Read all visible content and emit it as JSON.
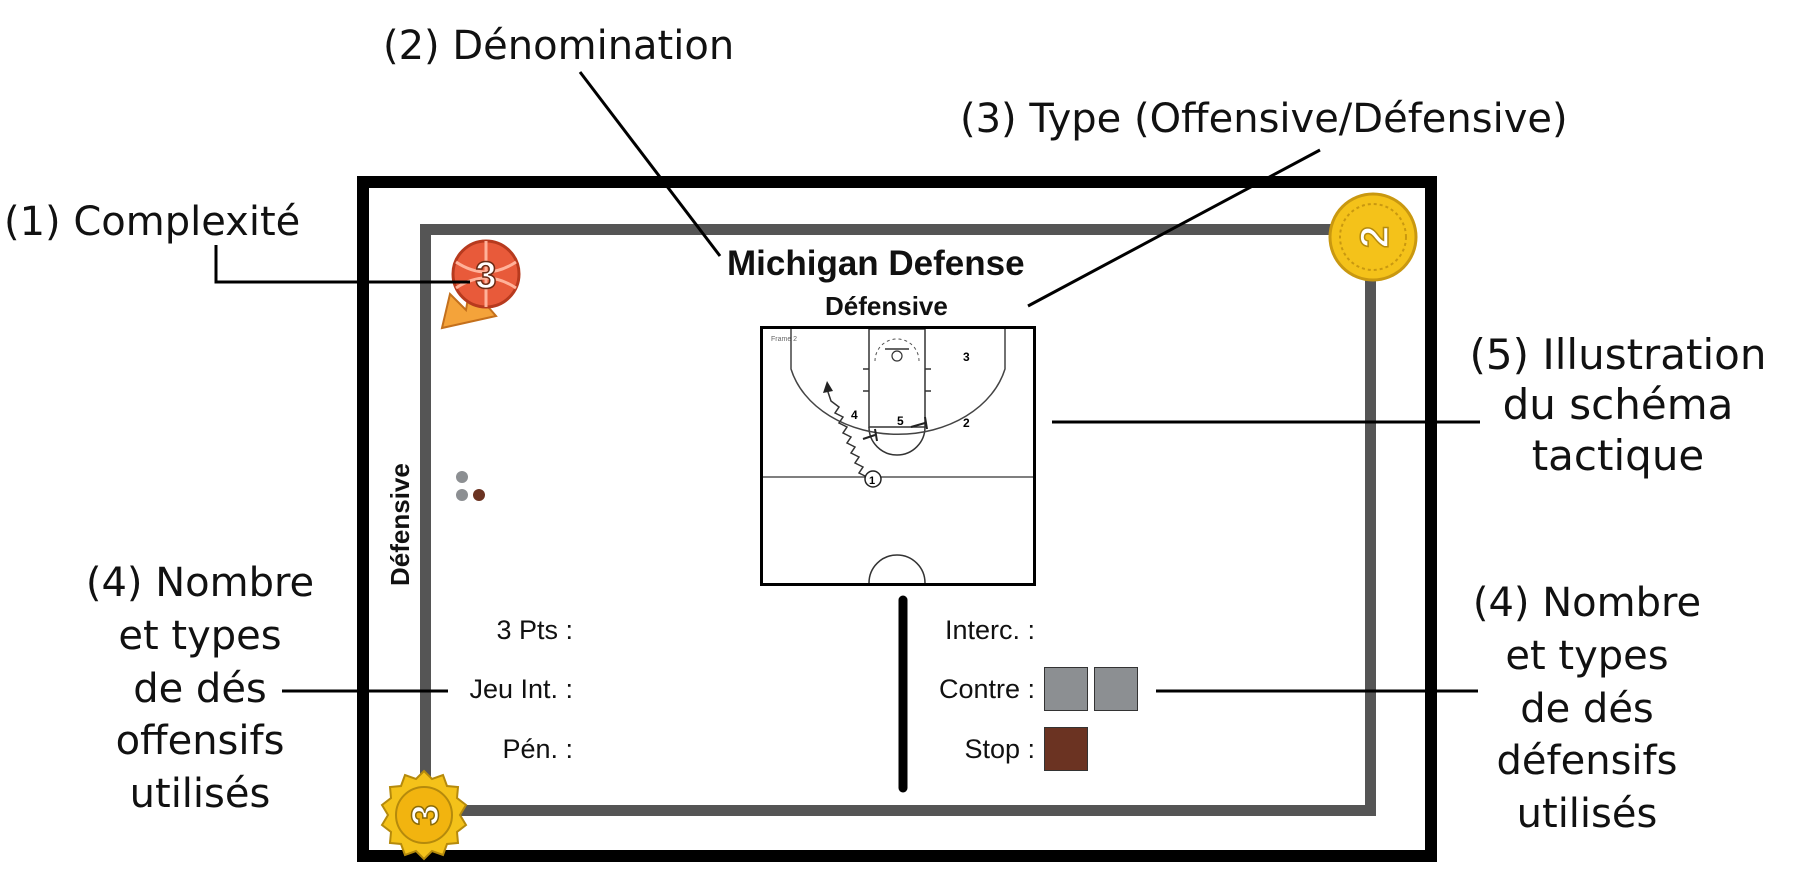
{
  "annotations": {
    "complexity": "(1) Complexité",
    "name": "(2) Dénomination",
    "type": "(3) Type (Offensive/Défensive)",
    "offensive_dice": [
      "(4) Nombre",
      "et types",
      "de dés",
      "offensifs",
      "utilisés"
    ],
    "defensive_dice": [
      "(4) Nombre",
      "et types",
      "de dés",
      "défensifs",
      "utilisés"
    ],
    "illustration": [
      "(5) Illustration",
      "du schéma",
      "tactique"
    ]
  },
  "card": {
    "title": "Michigan Defense",
    "type_label": "Défensive",
    "side_label": "Défensive",
    "complexity_value": "3",
    "top_right_coin": "2",
    "bottom_left_coin": "3",
    "court_caption": "Frame 2",
    "players": [
      "3",
      "2",
      "4",
      "5",
      "1"
    ],
    "offense_stats": [
      {
        "label": "3 Pts :"
      },
      {
        "label": "Jeu Int. :"
      },
      {
        "label": "Pén. :"
      }
    ],
    "defense_stats": [
      {
        "label": "Interc. :",
        "dice": []
      },
      {
        "label": "Contre :",
        "dice": [
          "gray",
          "gray"
        ]
      },
      {
        "label": "Stop :",
        "dice": [
          "brown"
        ]
      }
    ]
  },
  "colors": {
    "gray_die": "#8c8f92",
    "brown_die": "#6b3322",
    "coin_gold": "#f4c21a",
    "ball_red": "#e85a3a"
  }
}
